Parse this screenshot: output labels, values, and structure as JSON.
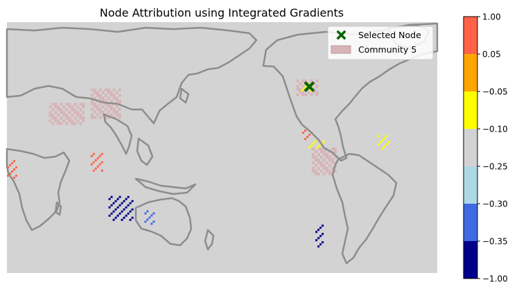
{
  "chart_data": {
    "type": "heatmap",
    "title": "Node Attribution using Integrated Gradients",
    "legend": {
      "placement": "top-right",
      "entries": [
        {
          "label": "Selected Node",
          "marker": "x",
          "color": "#006400"
        },
        {
          "label": "Community 5",
          "marker": "patch",
          "color": "#d8b4b8"
        }
      ]
    },
    "colorbar": {
      "tick_labels": [
        "1.00",
        "0.05",
        "−0.05",
        "−0.10",
        "−0.25",
        "−0.30",
        "−0.35",
        "−1.00"
      ],
      "bins": [
        {
          "from": 0.05,
          "to": 1.0,
          "color": "#ff6347"
        },
        {
          "from": -0.05,
          "to": 0.05,
          "color": "#ffa500"
        },
        {
          "from": -0.1,
          "to": -0.05,
          "color": "#ffff00"
        },
        {
          "from": -0.25,
          "to": -0.1,
          "color": "#d3d3d3"
        },
        {
          "from": -0.3,
          "to": -0.25,
          "color": "#add8e6"
        },
        {
          "from": -0.35,
          "to": -0.3,
          "color": "#4169e1"
        },
        {
          "from": -1.0,
          "to": -0.35,
          "color": "#00008b"
        }
      ]
    },
    "map": {
      "background_color": "#d3d3d3",
      "coastline_color": "#8c8c8c",
      "selected_node": {
        "lon": -77,
        "lat": 39
      },
      "community_regions": [
        {
          "lon": [
            -88,
            -70
          ],
          "lat": [
            35,
            43
          ]
        },
        {
          "lon": [
            -20,
            40
          ],
          "lat": [
            -5,
            12
          ]
        },
        {
          "lon": [
            10,
            40
          ],
          "lat": [
            -35,
            -15
          ]
        },
        {
          "lon": [
            65,
            95
          ],
          "lat": [
            18,
            30
          ]
        },
        {
          "lon": [
            100,
            125
          ],
          "lat": [
            22,
            38
          ]
        },
        {
          "lon": [
            -75,
            -55
          ],
          "lat": [
            -10,
            5
          ]
        }
      ],
      "attribution_clusters": [
        {
          "lon": [
            -84,
            -74
          ],
          "lat": [
            37,
            41
          ],
          "value": -0.07
        },
        {
          "lon": [
            -83,
            -76
          ],
          "lat": [
            10,
            15
          ],
          "value": 0.1
        },
        {
          "lon": [
            -78,
            -65
          ],
          "lat": [
            5,
            9
          ],
          "value": -0.07
        },
        {
          "lon": [
            -72,
            -66
          ],
          "lat": [
            -50,
            -38
          ],
          "value": -0.4
        },
        {
          "lon": [
            115,
            135
          ],
          "lat": [
            -35,
            -22
          ],
          "value": -0.4
        },
        {
          "lon": [
            145,
            152
          ],
          "lat": [
            -38,
            -30
          ],
          "value": -0.32
        },
        {
          "lon": [
            30,
            38
          ],
          "lat": [
            -12,
            -2
          ],
          "value": 0.1
        },
        {
          "lon": [
            100,
            110
          ],
          "lat": [
            -8,
            2
          ],
          "value": 0.1
        },
        {
          "lon": [
            -20,
            -10
          ],
          "lat": [
            5,
            12
          ],
          "value": -0.07
        }
      ]
    }
  }
}
